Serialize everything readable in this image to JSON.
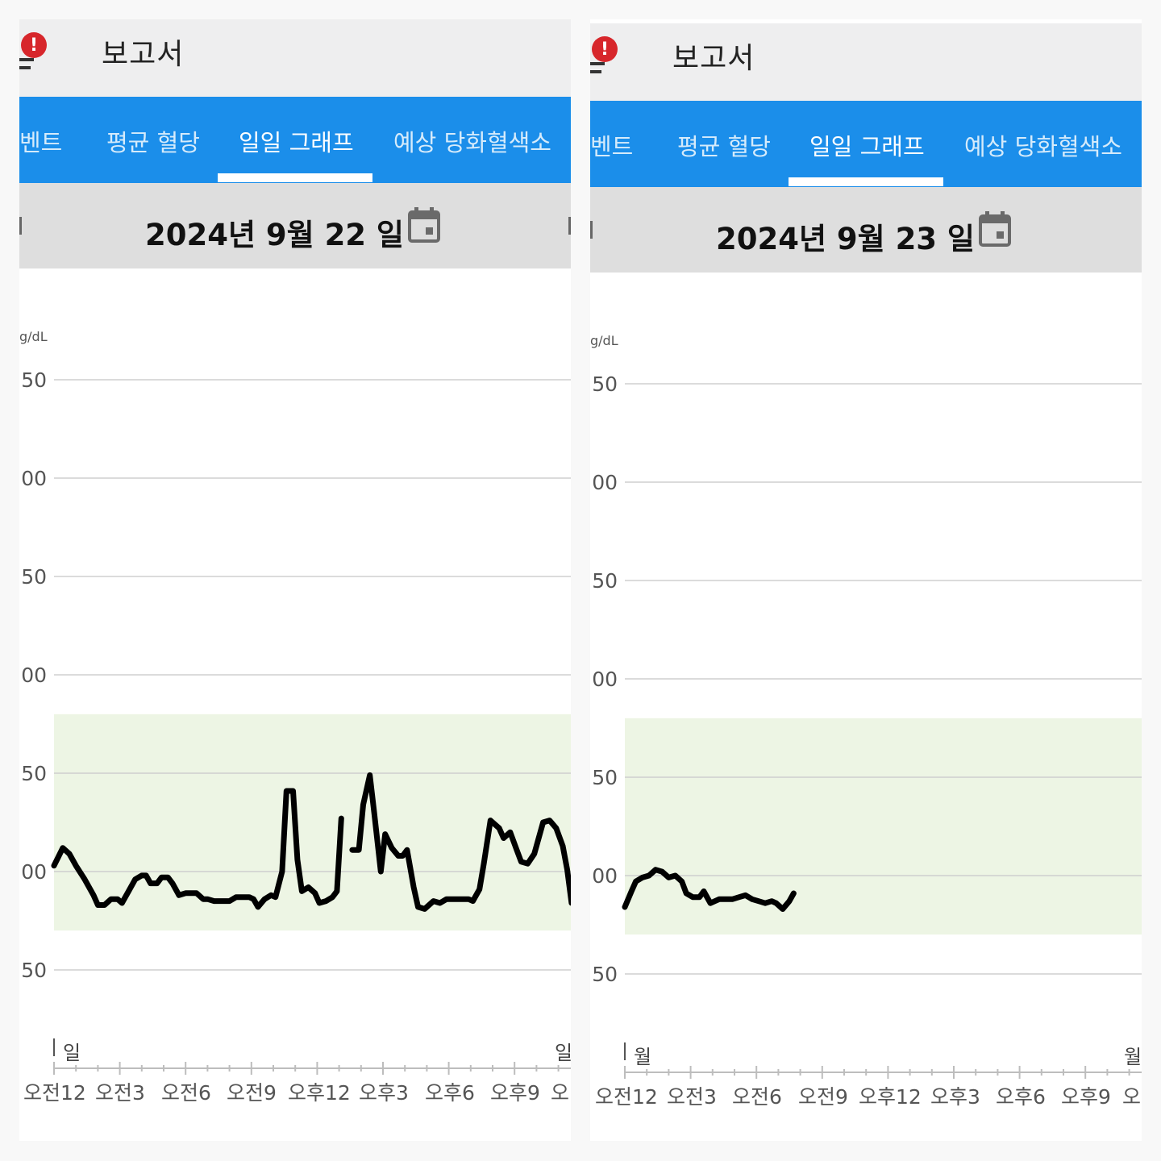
{
  "panels": [
    {
      "header": {
        "title": "보고서",
        "alert_icon": "alert-icon",
        "alert_glyph": "!"
      },
      "tabs": [
        {
          "label": "벤트",
          "active": false
        },
        {
          "label": "평균 혈당",
          "active": false
        },
        {
          "label": "일일 그래프",
          "active": true
        },
        {
          "label": "예상 당화혈색소",
          "active": false
        }
      ],
      "date": "2024년 9월 22 일",
      "calendar_icon": "calendar-icon",
      "unit": "g/dL",
      "y_tick_labels": [
        "50",
        "00",
        "50",
        "00",
        "50",
        "00",
        "50"
      ],
      "day_start_label": "일",
      "day_end_label": "일",
      "x_tick_labels": [
        "오전12",
        "오전3",
        "오전6",
        "오전9",
        "오후12",
        "오후3",
        "오후6",
        "오후9",
        "오"
      ]
    },
    {
      "header": {
        "title": "보고서",
        "alert_icon": "alert-icon",
        "alert_glyph": "!"
      },
      "tabs": [
        {
          "label": "벤트",
          "active": false
        },
        {
          "label": "평균 혈당",
          "active": false
        },
        {
          "label": "일일 그래프",
          "active": true
        },
        {
          "label": "예상 당화혈색소",
          "active": false
        }
      ],
      "date": "2024년 9월 23 일",
      "calendar_icon": "calendar-icon",
      "unit": "g/dL",
      "y_tick_labels": [
        "50",
        "00",
        "50",
        "00",
        "50",
        "00",
        "50"
      ],
      "day_start_label": "월",
      "day_end_label": "월",
      "x_tick_labels": [
        "오전12",
        "오전3",
        "오전6",
        "오전9",
        "오후12",
        "오후3",
        "오후6",
        "오후9",
        "오"
      ]
    }
  ],
  "chart_data": [
    {
      "type": "line",
      "title": "2024년 9월 22 일",
      "xlabel": "",
      "ylabel": "g/dL",
      "x_unit": "hours since 오전12",
      "ylim": [
        25,
        380
      ],
      "xlim": [
        0,
        23.6
      ],
      "gridlines": [
        50,
        100,
        150,
        200,
        250,
        300,
        350
      ],
      "target_range": [
        70,
        180
      ],
      "target_range_color": "#edf5e4",
      "line_color": "#000000",
      "grid": true,
      "series": [
        {
          "segments": [
            [
              [
                0,
                103
              ],
              [
                0.4,
                112
              ],
              [
                0.7,
                109
              ],
              [
                1.0,
                103
              ],
              [
                1.4,
                96
              ],
              [
                1.8,
                88
              ],
              [
                2.0,
                83
              ],
              [
                2.3,
                83
              ],
              [
                2.6,
                86
              ],
              [
                2.9,
                86
              ],
              [
                3.1,
                84
              ],
              [
                3.4,
                90
              ],
              [
                3.7,
                96
              ],
              [
                4.0,
                98
              ],
              [
                4.2,
                98
              ],
              [
                4.4,
                94
              ],
              [
                4.7,
                94
              ],
              [
                4.9,
                97
              ],
              [
                5.2,
                97
              ],
              [
                5.4,
                94
              ],
              [
                5.7,
                88
              ],
              [
                6.0,
                89
              ],
              [
                6.3,
                89
              ],
              [
                6.5,
                89
              ],
              [
                6.8,
                86
              ],
              [
                7.0,
                86
              ],
              [
                7.3,
                85
              ],
              [
                7.6,
                85
              ],
              [
                8.0,
                85
              ],
              [
                8.3,
                87
              ],
              [
                8.6,
                87
              ],
              [
                8.9,
                87
              ],
              [
                9.1,
                86
              ],
              [
                9.3,
                82
              ],
              [
                9.6,
                86
              ],
              [
                9.9,
                88
              ],
              [
                10.1,
                87
              ],
              [
                10.4,
                100
              ],
              [
                10.6,
                141
              ],
              [
                10.9,
                141
              ],
              [
                11.1,
                106
              ],
              [
                11.3,
                90
              ],
              [
                11.6,
                92
              ],
              [
                11.9,
                89
              ],
              [
                12.1,
                84
              ],
              [
                12.4,
                85
              ],
              [
                12.7,
                87
              ],
              [
                12.9,
                90
              ],
              [
                13.1,
                127
              ]
            ],
            [
              [
                13.6,
                111
              ],
              [
                13.9,
                111
              ],
              [
                14.1,
                134
              ],
              [
                14.4,
                149
              ],
              [
                14.6,
                130
              ],
              [
                14.9,
                100
              ],
              [
                15.1,
                119
              ],
              [
                15.4,
                112
              ],
              [
                15.7,
                108
              ],
              [
                15.9,
                108
              ],
              [
                16.1,
                111
              ],
              [
                16.4,
                92
              ],
              [
                16.6,
                82
              ],
              [
                16.9,
                81
              ],
              [
                17.3,
                85
              ],
              [
                17.6,
                84
              ],
              [
                17.9,
                86
              ],
              [
                18.2,
                86
              ],
              [
                18.5,
                86
              ],
              [
                18.9,
                86
              ],
              [
                19.1,
                85
              ],
              [
                19.4,
                91
              ],
              [
                19.6,
                104
              ],
              [
                19.9,
                126
              ],
              [
                20.3,
                122
              ],
              [
                20.5,
                117
              ],
              [
                20.8,
                120
              ],
              [
                21.1,
                111
              ],
              [
                21.3,
                105
              ],
              [
                21.6,
                104
              ],
              [
                21.9,
                109
              ],
              [
                22.3,
                125
              ],
              [
                22.6,
                126
              ],
              [
                22.9,
                122
              ],
              [
                23.2,
                113
              ],
              [
                23.4,
                101
              ],
              [
                23.6,
                84
              ]
            ]
          ]
        }
      ]
    },
    {
      "type": "line",
      "title": "2024년 9월 23 일",
      "xlabel": "",
      "ylabel": "g/dL",
      "x_unit": "hours since 오전12",
      "ylim": [
        25,
        380
      ],
      "xlim": [
        0,
        23.6
      ],
      "gridlines": [
        50,
        100,
        150,
        200,
        250,
        300,
        350
      ],
      "target_range": [
        70,
        180
      ],
      "target_range_color": "#edf5e4",
      "line_color": "#000000",
      "grid": true,
      "series": [
        {
          "segments": [
            [
              [
                0,
                84
              ],
              [
                0.3,
                92
              ],
              [
                0.5,
                97
              ],
              [
                0.8,
                99
              ],
              [
                1.1,
                100
              ],
              [
                1.4,
                103
              ],
              [
                1.7,
                102
              ],
              [
                2.0,
                99
              ],
              [
                2.3,
                100
              ],
              [
                2.6,
                97
              ],
              [
                2.8,
                91
              ],
              [
                3.1,
                89
              ],
              [
                3.4,
                89
              ],
              [
                3.6,
                92
              ],
              [
                3.9,
                86
              ],
              [
                4.3,
                88
              ],
              [
                4.6,
                88
              ],
              [
                4.9,
                88
              ],
              [
                5.2,
                89
              ],
              [
                5.5,
                90
              ],
              [
                5.8,
                88
              ],
              [
                6.1,
                87
              ],
              [
                6.4,
                86
              ],
              [
                6.7,
                87
              ],
              [
                6.9,
                86
              ],
              [
                7.2,
                83
              ],
              [
                7.5,
                87
              ],
              [
                7.7,
                91
              ]
            ]
          ]
        }
      ]
    }
  ]
}
